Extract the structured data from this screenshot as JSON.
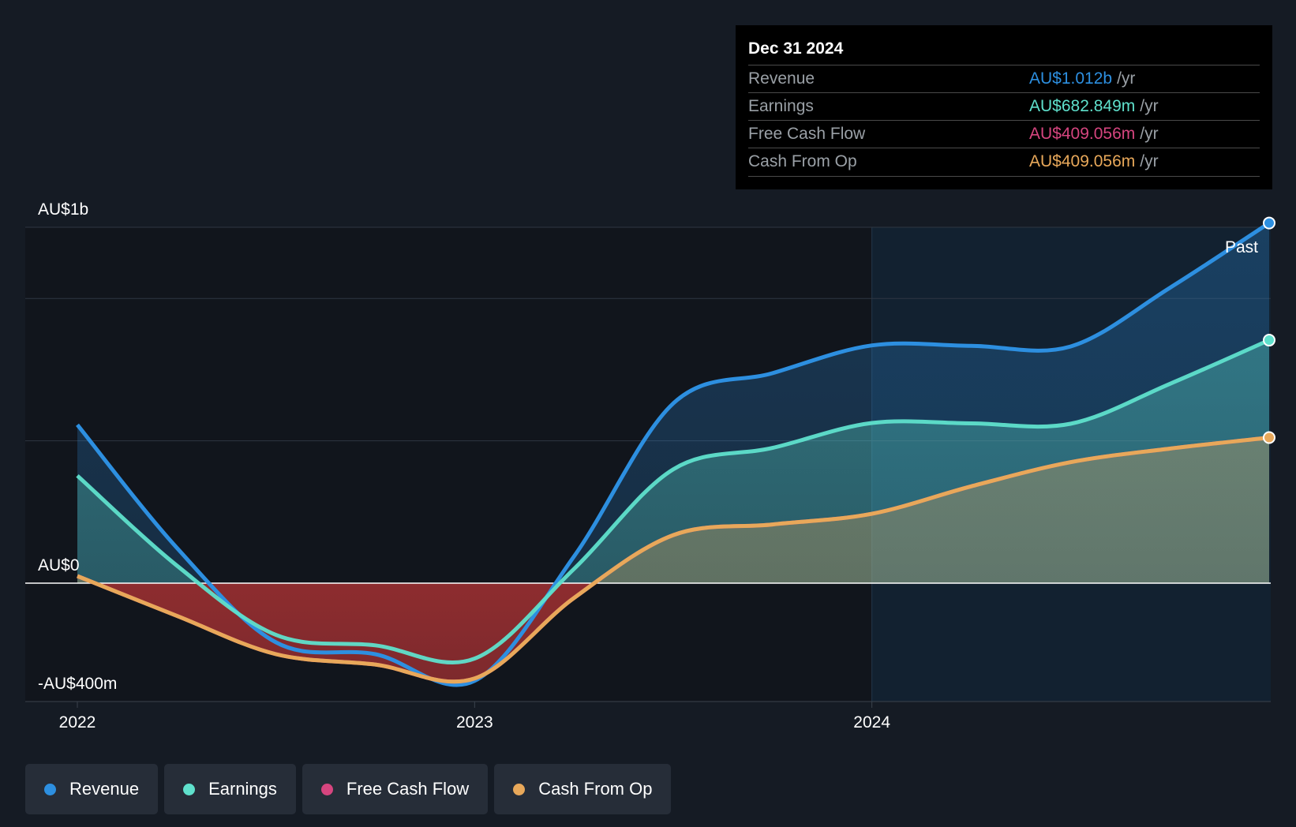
{
  "chart_data": {
    "type": "area",
    "y_axis_labels": [
      "AU$1b",
      "AU$0",
      "-AU$400m"
    ],
    "y_axis_values": [
      1000,
      0,
      -400
    ],
    "ylim": [
      -400,
      1000
    ],
    "xlim": [
      2022.0,
      2025.0
    ],
    "x_ticks": [
      {
        "value": 2022,
        "label": "2022"
      },
      {
        "value": 2023,
        "label": "2023"
      },
      {
        "value": 2024,
        "label": "2024"
      }
    ],
    "past_label": "Past",
    "past_start": 2024.0,
    "grid": true,
    "series": [
      {
        "name": "Revenue",
        "color": "#2d8fe0",
        "points": [
          [
            2022.0,
            445
          ],
          [
            2022.25,
            100
          ],
          [
            2022.5,
            -200
          ],
          [
            2022.75,
            -240
          ],
          [
            2023.0,
            -330
          ],
          [
            2023.25,
            75
          ],
          [
            2023.5,
            505
          ],
          [
            2023.75,
            590
          ],
          [
            2024.0,
            668
          ],
          [
            2024.25,
            667
          ],
          [
            2024.5,
            665
          ],
          [
            2024.75,
            830
          ],
          [
            2025.0,
            1012
          ]
        ]
      },
      {
        "name": "Earnings",
        "color": "#5fe0cc",
        "points": [
          [
            2022.0,
            302
          ],
          [
            2022.25,
            50
          ],
          [
            2022.5,
            -175
          ],
          [
            2022.75,
            -210
          ],
          [
            2023.0,
            -255
          ],
          [
            2023.25,
            40
          ],
          [
            2023.5,
            320
          ],
          [
            2023.75,
            380
          ],
          [
            2024.0,
            450
          ],
          [
            2024.25,
            449
          ],
          [
            2024.5,
            448
          ],
          [
            2024.75,
            560
          ],
          [
            2025.0,
            682.849
          ]
        ]
      },
      {
        "name": "Free Cash Flow",
        "color": "#d6457f",
        "points": [
          [
            2022.0,
            20
          ],
          [
            2022.25,
            -110
          ],
          [
            2022.5,
            -240
          ],
          [
            2022.75,
            -275
          ],
          [
            2023.0,
            -322
          ],
          [
            2023.25,
            -50
          ],
          [
            2023.5,
            135
          ],
          [
            2023.75,
            165
          ],
          [
            2024.0,
            195
          ],
          [
            2024.25,
            272
          ],
          [
            2024.5,
            340
          ],
          [
            2024.75,
            378
          ],
          [
            2025.0,
            409.056
          ]
        ]
      },
      {
        "name": "Cash From Op",
        "color": "#e8a85a",
        "points": [
          [
            2022.0,
            20
          ],
          [
            2022.25,
            -110
          ],
          [
            2022.5,
            -240
          ],
          [
            2022.75,
            -275
          ],
          [
            2023.0,
            -322
          ],
          [
            2023.25,
            -50
          ],
          [
            2023.5,
            135
          ],
          [
            2023.75,
            165
          ],
          [
            2024.0,
            195
          ],
          [
            2024.25,
            272
          ],
          [
            2024.5,
            340
          ],
          [
            2024.75,
            378
          ],
          [
            2025.0,
            409.056
          ]
        ]
      }
    ]
  },
  "tooltip": {
    "date": "Dec 31 2024",
    "unit": "/yr",
    "rows": [
      {
        "label": "Revenue",
        "value": "AU$1.012b",
        "color": "#2d8fe0"
      },
      {
        "label": "Earnings",
        "value": "AU$682.849m",
        "color": "#5fe0cc"
      },
      {
        "label": "Free Cash Flow",
        "value": "AU$409.056m",
        "color": "#d6457f"
      },
      {
        "label": "Cash From Op",
        "value": "AU$409.056m",
        "color": "#e8a85a"
      }
    ]
  },
  "legend": [
    {
      "label": "Revenue",
      "color": "#2d8fe0"
    },
    {
      "label": "Earnings",
      "color": "#5fe0cc"
    },
    {
      "label": "Free Cash Flow",
      "color": "#d6457f"
    },
    {
      "label": "Cash From Op",
      "color": "#e8a85a"
    }
  ]
}
